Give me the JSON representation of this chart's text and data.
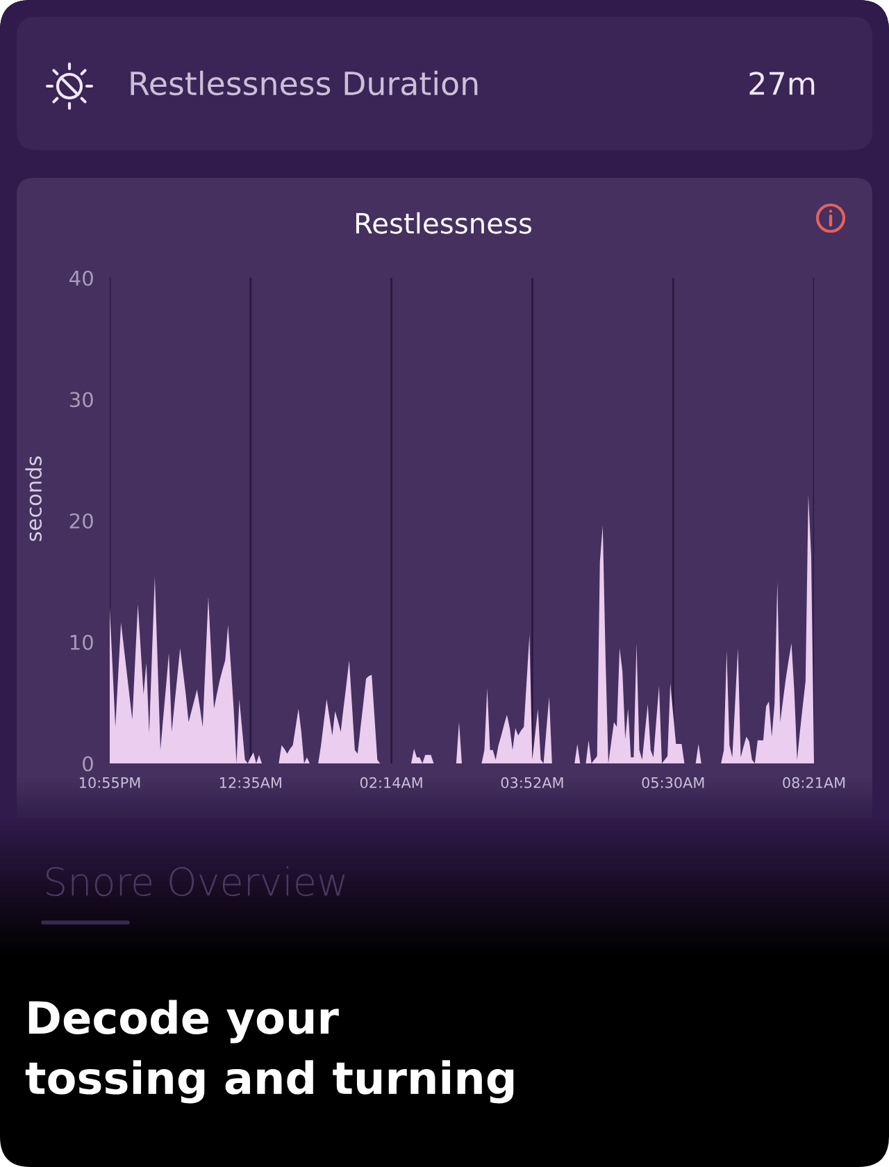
{
  "chart_data": {
    "type": "area",
    "title": "Restlessness",
    "ylabel": "seconds",
    "categories": [
      "10:55PM",
      null,
      null,
      null,
      null,
      null,
      null,
      null,
      null,
      null,
      null,
      null,
      null,
      null,
      null,
      null,
      null,
      null,
      null,
      null,
      null,
      null,
      null,
      null,
      null,
      null,
      null,
      null,
      null,
      null,
      null,
      null,
      null,
      null,
      null,
      null,
      null,
      null,
      null,
      null,
      null,
      null,
      null,
      null,
      null,
      null,
      null,
      null,
      null,
      null,
      "12:35AM",
      null,
      null,
      null,
      null,
      null,
      null,
      null,
      null,
      null,
      null,
      null,
      null,
      null,
      null,
      null,
      null,
      null,
      null,
      null,
      null,
      null,
      null,
      null,
      null,
      null,
      null,
      null,
      null,
      null,
      null,
      null,
      null,
      null,
      null,
      null,
      null,
      null,
      null,
      null,
      null,
      null,
      null,
      null,
      null,
      null,
      null,
      null,
      null,
      null,
      "02:14AM",
      null,
      null,
      null,
      null,
      null,
      null,
      null,
      null,
      null,
      null,
      null,
      null,
      null,
      null,
      null,
      null,
      null,
      null,
      null,
      null,
      null,
      null,
      null,
      null,
      null,
      null,
      null,
      null,
      null,
      null,
      null,
      null,
      null,
      null,
      null,
      null,
      null,
      null,
      null,
      null,
      null,
      null,
      null,
      null,
      null,
      null,
      null,
      null,
      null,
      "03:52AM",
      null,
      null,
      null,
      null,
      null,
      null,
      null,
      null,
      null,
      null,
      null,
      null,
      null,
      null,
      null,
      null,
      null,
      null,
      null,
      null,
      null,
      null,
      null,
      null,
      null,
      null,
      null,
      null,
      null,
      null,
      null,
      null,
      null,
      null,
      null,
      null,
      null,
      null,
      null,
      null,
      null,
      null,
      null,
      null,
      null,
      null,
      null,
      null,
      null,
      "05:30AM",
      null,
      null,
      null,
      null,
      null,
      null,
      null,
      null,
      null,
      null,
      null,
      null,
      null,
      null,
      null,
      null,
      null,
      null,
      null,
      null,
      null,
      null,
      null,
      null,
      null,
      null,
      null,
      null,
      null,
      null,
      null,
      null,
      null,
      null,
      null,
      null,
      null,
      null,
      null,
      null,
      null,
      null,
      null,
      null,
      null,
      null,
      null,
      null,
      null,
      "08:21AM"
    ],
    "series": [
      {
        "color": "#eacdef",
        "values": [
          12.8,
          7.9,
          3.0,
          7.3,
          11.6,
          9.6,
          7.6,
          5.6,
          3.6,
          8.4,
          13.1,
          9.4,
          5.7,
          8.3,
          2.5,
          9.0,
          15.4,
          8.3,
          1.1,
          3.8,
          6.4,
          9.1,
          2.6,
          4.9,
          7.2,
          9.5,
          7.6,
          5.7,
          3.4,
          4.3,
          5.2,
          6.1,
          4.6,
          3.0,
          8.4,
          13.7,
          9.1,
          4.5,
          5.7,
          6.8,
          7.7,
          8.5,
          11.4,
          8.0,
          4.5,
          0,
          5.3,
          2.8,
          0.3,
          0,
          0.5,
          0.9,
          0,
          0.7,
          0,
          0,
          0,
          0,
          0,
          0,
          0,
          1.5,
          1.2,
          0.8,
          1.2,
          1.5,
          3.0,
          4.5,
          2.6,
          0,
          0.5,
          0,
          0,
          0,
          0,
          1.5,
          3.4,
          5.3,
          3.8,
          2.3,
          4.3,
          3.5,
          2.6,
          4.6,
          6.5,
          8.5,
          4.8,
          1.1,
          0.8,
          2.9,
          4.9,
          7.0,
          7.2,
          7.3,
          3.8,
          0.3,
          0,
          0,
          0,
          0,
          0,
          0,
          0,
          0,
          0,
          0,
          0,
          0,
          1.2,
          0.5,
          0.5,
          0,
          0.7,
          0.7,
          0.7,
          0,
          0,
          0,
          0,
          0,
          0,
          0,
          0,
          0,
          3.4,
          0,
          0,
          0,
          0,
          0,
          0,
          0,
          0,
          1.1,
          6.2,
          1.1,
          1.1,
          0.3,
          1.5,
          2.3,
          3.2,
          4.0,
          2.9,
          1.1,
          2.9,
          2.3,
          2.7,
          3.0,
          6.8,
          10.6,
          0.3,
          2.4,
          4.5,
          0.3,
          0,
          2.8,
          5.5,
          0,
          0,
          0,
          0,
          0,
          0,
          0,
          0,
          0,
          1.6,
          0,
          0,
          0,
          1.9,
          0,
          0.3,
          0.6,
          16.6,
          19.6,
          8.7,
          0,
          1.7,
          3.4,
          3.0,
          9.5,
          7.6,
          2.0,
          4.5,
          0.5,
          0.5,
          9.9,
          1.1,
          0.3,
          2.6,
          4.9,
          1.1,
          0.5,
          3.5,
          6.4,
          0,
          0.3,
          0.6,
          6.6,
          4.1,
          1.6,
          1.6,
          1.6,
          0,
          0,
          0,
          0,
          0,
          1.6,
          0,
          0,
          0,
          0,
          0,
          0,
          0,
          0,
          1.1,
          9.3,
          1.5,
          0.5,
          5.0,
          9.5,
          0.5,
          1.4,
          2.2,
          1.8,
          0.3,
          0,
          1.9,
          1.9,
          1.9,
          4.7,
          5.1,
          2.2,
          4.9,
          15.0,
          3.4,
          5.2,
          7.0,
          8.5,
          9.9,
          6.0,
          0.3,
          2.6,
          4.7,
          6.8,
          22.1,
          17.1,
          0
        ]
      }
    ],
    "ylim": [
      0,
      40
    ],
    "yticks": [
      0,
      10,
      20,
      30,
      40
    ],
    "grid": "x",
    "annotations": [
      "Restlessness Duration",
      "27m",
      "Snore Overview",
      "Decode your\ntossing and turning"
    ]
  }
}
